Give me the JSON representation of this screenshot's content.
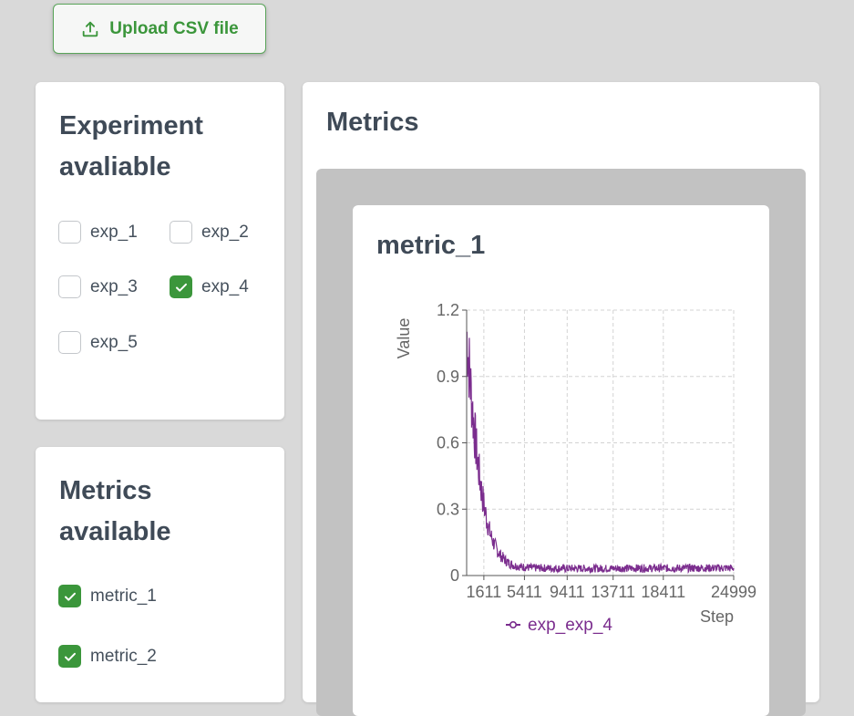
{
  "upload": {
    "label": "Upload CSV file"
  },
  "experiments": {
    "title": "Experiment avaliable",
    "items": [
      {
        "label": "exp_1",
        "checked": false
      },
      {
        "label": "exp_2",
        "checked": false
      },
      {
        "label": "exp_3",
        "checked": false
      },
      {
        "label": "exp_4",
        "checked": true
      },
      {
        "label": "exp_5",
        "checked": false
      }
    ]
  },
  "metrics_list": {
    "title": "Metrics available",
    "items": [
      {
        "label": "metric_1",
        "checked": true
      },
      {
        "label": "metric_2",
        "checked": true
      }
    ]
  },
  "main": {
    "title": "Metrics"
  },
  "colors": {
    "accent": "#3b963b",
    "series": "#7b2d8e",
    "background": "#d9d9d9"
  },
  "chart_data": {
    "type": "line",
    "title": "metric_1",
    "xlabel": "Step",
    "ylabel": "Value",
    "xlim": [
      0,
      24999
    ],
    "ylim": [
      0,
      1.2
    ],
    "x_ticks": [
      "1611",
      "5411",
      "9411",
      "13711",
      "18411",
      "24999"
    ],
    "y_ticks": [
      "0",
      "0.3",
      "0.6",
      "0.9",
      "1.2"
    ],
    "grid": true,
    "legend_position": "bottom",
    "series": [
      {
        "name": "exp_exp_4",
        "x": [
          0,
          200,
          400,
          600,
          800,
          1000,
          1200,
          1400,
          1611,
          1900,
          2200,
          2500,
          2800,
          3100,
          3400,
          3700,
          4000,
          4500,
          5000,
          6000,
          8000,
          10000,
          13000,
          16000,
          19000,
          22000,
          24999
        ],
        "y": [
          1.1,
          0.97,
          0.84,
          0.72,
          0.62,
          0.53,
          0.45,
          0.38,
          0.32,
          0.25,
          0.19,
          0.15,
          0.12,
          0.095,
          0.08,
          0.065,
          0.055,
          0.045,
          0.04,
          0.035,
          0.033,
          0.032,
          0.032,
          0.033,
          0.033,
          0.034,
          0.034
        ]
      }
    ]
  }
}
